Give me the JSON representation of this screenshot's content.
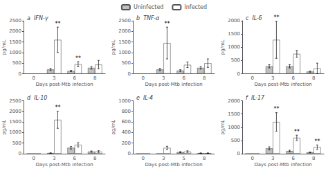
{
  "chart_data": [
    {
      "type": "bar",
      "title": "a  IFN-γ",
      "xlabel": "Days post-Mtb infection",
      "ylabel": "pg/mL",
      "categories": [
        "0",
        "3",
        "6",
        "8"
      ],
      "series": [
        {
          "name": "Uninfected",
          "color": "#c0c0c0",
          "values": [
            0,
            200,
            130,
            280
          ],
          "errors": [
            0,
            50,
            30,
            60
          ]
        },
        {
          "name": "Infected",
          "color": "#ffffff",
          "values": [
            0,
            1600,
            450,
            430
          ],
          "errors": [
            0,
            600,
            120,
            200
          ]
        }
      ],
      "annotations": [
        {
          "text": "**",
          "category": "3",
          "series": "Infected"
        },
        {
          "text": "**",
          "category": "6",
          "series": "Infected"
        }
      ],
      "ylim": [
        0,
        2500
      ],
      "yticks": [
        0,
        500,
        1000,
        1500,
        2000,
        2500
      ],
      "grid": false,
      "legend": "top"
    },
    {
      "type": "bar",
      "title": "b  TNF-α",
      "xlabel": "Days post-Mtb infection",
      "ylabel": "pg/mL",
      "categories": [
        "0",
        "3",
        "6",
        "8"
      ],
      "series": [
        {
          "name": "Uninfected",
          "color": "#c0c0c0",
          "values": [
            0,
            200,
            150,
            280
          ],
          "errors": [
            0,
            60,
            40,
            60
          ]
        },
        {
          "name": "Infected",
          "color": "#ffffff",
          "values": [
            0,
            1450,
            420,
            500
          ],
          "errors": [
            0,
            750,
            130,
            200
          ]
        }
      ],
      "annotations": [
        {
          "text": "**",
          "category": "3",
          "series": "Infected"
        }
      ],
      "ylim": [
        0,
        2500
      ],
      "yticks": [
        0,
        500,
        1000,
        1500,
        2000,
        2500
      ],
      "grid": false,
      "legend": "top"
    },
    {
      "type": "bar",
      "title": "c  IL-6",
      "xlabel": "Days post-Mtb infection",
      "ylabel": "pg/mL",
      "categories": [
        "0",
        "3",
        "6",
        "8"
      ],
      "series": [
        {
          "name": "Uninfected",
          "color": "#c0c0c0",
          "values": [
            0,
            280,
            280,
            80
          ],
          "errors": [
            0,
            60,
            60,
            20
          ]
        },
        {
          "name": "Infected",
          "color": "#ffffff",
          "values": [
            0,
            1280,
            750,
            200
          ],
          "errors": [
            0,
            700,
            130,
            200
          ]
        }
      ],
      "annotations": [
        {
          "text": "**",
          "category": "3",
          "series": "Infected"
        }
      ],
      "ylim": [
        0,
        2000
      ],
      "yticks": [
        0,
        500,
        1000,
        1500,
        2000
      ],
      "grid": false,
      "legend": "top"
    },
    {
      "type": "bar",
      "title": "d  IL-10",
      "xlabel": "Days post-Mtb infection",
      "ylabel": "pg/mL",
      "categories": [
        "0",
        "3",
        "6",
        "8"
      ],
      "series": [
        {
          "name": "Uninfected",
          "color": "#c0c0c0",
          "values": [
            0,
            30,
            280,
            100
          ],
          "errors": [
            0,
            10,
            60,
            30
          ]
        },
        {
          "name": "Infected",
          "color": "#ffffff",
          "values": [
            0,
            1600,
            420,
            100
          ],
          "errors": [
            0,
            400,
            100,
            40
          ]
        }
      ],
      "annotations": [
        {
          "text": "**",
          "category": "3",
          "series": "Infected"
        }
      ],
      "ylim": [
        0,
        2500
      ],
      "yticks": [
        0,
        500,
        1000,
        1500,
        2000,
        2500
      ],
      "grid": false,
      "legend": "top"
    },
    {
      "type": "bar",
      "title": "e  IL-4",
      "xlabel": "Days post-Mtb infection",
      "ylabel": "pg/mL",
      "categories": [
        "0",
        "3",
        "5",
        "8"
      ],
      "series": [
        {
          "name": "Uninfected",
          "color": "#c0c0c0",
          "values": [
            0,
            0,
            30,
            10
          ],
          "errors": [
            0,
            0,
            10,
            5
          ]
        },
        {
          "name": "Infected",
          "color": "#ffffff",
          "values": [
            0,
            110,
            40,
            10
          ],
          "errors": [
            0,
            30,
            15,
            5
          ]
        }
      ],
      "annotations": [],
      "ylim": [
        0,
        1000
      ],
      "yticks": [
        0,
        200,
        400,
        600,
        800,
        1000
      ],
      "grid": false,
      "legend": "top"
    },
    {
      "type": "bar",
      "title": "f  IL-17",
      "xlabel": "Days post-Mtb infection",
      "ylabel": "pg/mL",
      "categories": [
        "0",
        "3",
        "6",
        "8"
      ],
      "series": [
        {
          "name": "Uninfected",
          "color": "#c0c0c0",
          "values": [
            0,
            200,
            100,
            50
          ],
          "errors": [
            0,
            60,
            30,
            15
          ]
        },
        {
          "name": "Infected",
          "color": "#ffffff",
          "values": [
            0,
            1200,
            600,
            250
          ],
          "errors": [
            0,
            350,
            100,
            80
          ]
        }
      ],
      "annotations": [
        {
          "text": "**",
          "category": "3",
          "series": "Infected"
        },
        {
          "text": "**",
          "category": "6",
          "series": "Infected"
        },
        {
          "text": "**",
          "category": "8",
          "series": "Infected"
        }
      ],
      "ylim": [
        0,
        2000
      ],
      "yticks": [
        0,
        500,
        1000,
        1500,
        2000
      ],
      "grid": false,
      "legend": "top"
    }
  ]
}
